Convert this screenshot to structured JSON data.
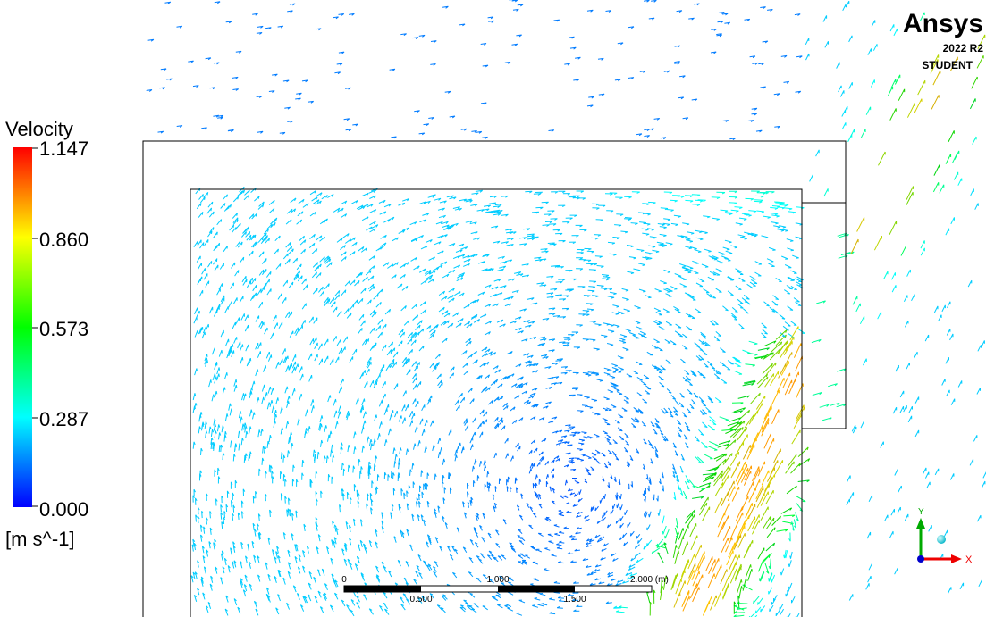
{
  "legend": {
    "title": "Velocity",
    "ticks": [
      "1.147",
      "0.860",
      "0.573",
      "0.287",
      "0.000"
    ],
    "unit": "[m s^-1]"
  },
  "logo": {
    "brand": "Ansys",
    "version": "2022 R2",
    "edition": "STUDENT"
  },
  "scale_bar": {
    "top_labels": [
      "0",
      "1.000",
      "2.000 (m)"
    ],
    "bottom_labels": [
      "0.500",
      "1.500"
    ]
  },
  "triad": {
    "x": "X",
    "y": "Y"
  }
}
